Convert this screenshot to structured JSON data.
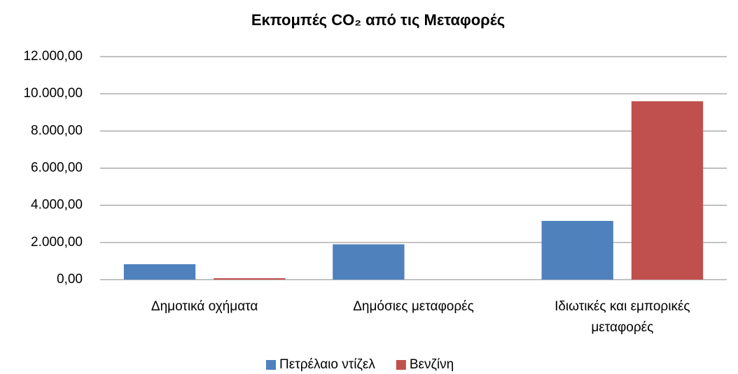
{
  "chart_data": {
    "type": "bar",
    "title": "Εκπομπές CO₂ από τις Μεταφορές",
    "categories": [
      "Δημοτικά οχήματα",
      "Δημόσιες μεταφορές",
      "Ιδιωτικές και εμπορικές μεταφορές"
    ],
    "series": [
      {
        "name": "Πετρέλαιο ντίζελ",
        "color": "#4f81bd",
        "values": [
          830,
          1900,
          3160
        ]
      },
      {
        "name": "Βενζίνη",
        "color": "#c0504d",
        "values": [
          75,
          0,
          9600
        ]
      }
    ],
    "ylim": [
      0,
      12000
    ],
    "yticks": [
      {
        "value": 0,
        "label": "0,00"
      },
      {
        "value": 2000,
        "label": "2.000,00"
      },
      {
        "value": 4000,
        "label": "4.000,00"
      },
      {
        "value": 6000,
        "label": "6.000,00"
      },
      {
        "value": 8000,
        "label": "8.000,00"
      },
      {
        "value": 10000,
        "label": "10.000,00"
      },
      {
        "value": 12000,
        "label": "12.000,00"
      }
    ],
    "grid": true,
    "legend": "bottom"
  }
}
